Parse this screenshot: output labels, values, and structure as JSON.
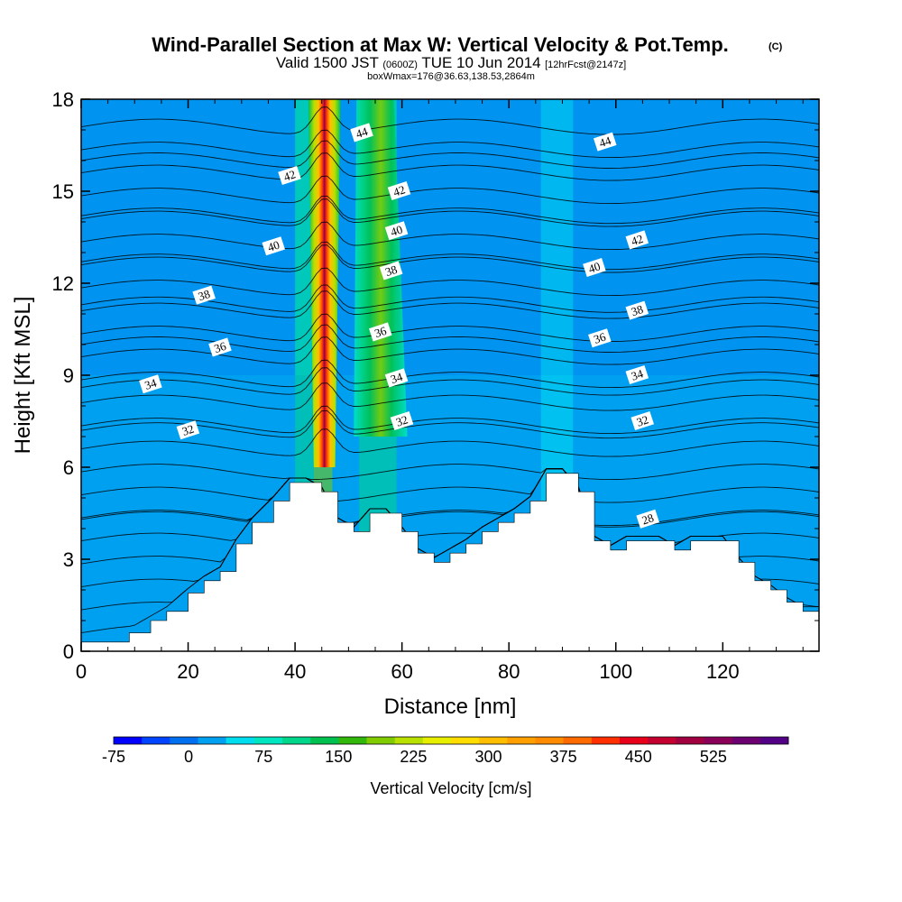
{
  "chart_data": {
    "type": "heatmap",
    "title": "Wind-Parallel Section at Max W: Vertical Velocity & Pot.Temp.",
    "title_mark": "(C)",
    "subtitle": {
      "valid_prefix": "Valid 1500 JST",
      "utc": "(0600Z)",
      "date": "TUE 10 Jun 2014",
      "forecast": "[12hrFcst@2147z]"
    },
    "annotation": "boxWmax=176@36.63,138.53,2864m",
    "xlabel": "Distance [nm]",
    "ylabel": "Height [Kft MSL]",
    "xlim": [
      0,
      138
    ],
    "ylim": [
      0,
      18
    ],
    "xticks": [
      0,
      20,
      40,
      60,
      80,
      100,
      120
    ],
    "xtick_labels": [
      "0",
      "20",
      "40",
      "60",
      "80",
      "100",
      "120"
    ],
    "yticks": [
      0,
      3,
      6,
      9,
      12,
      15,
      18
    ],
    "ytick_labels": [
      "0",
      "3",
      "6",
      "9",
      "12",
      "15",
      "18"
    ],
    "colorbar": {
      "label": "Vertical Velocity [cm/s]",
      "min": -75,
      "max": 600,
      "step": 25,
      "ticks": [
        -75,
        0,
        75,
        150,
        225,
        300,
        375,
        450,
        525
      ],
      "tick_labels": [
        "-75",
        "0",
        "75",
        "150",
        "225",
        "300",
        "375",
        "450",
        "525"
      ],
      "colors": [
        "#0000ff",
        "#0044ff",
        "#0070f0",
        "#00a0f0",
        "#00ddee",
        "#00e6c0",
        "#00d78a",
        "#00c050",
        "#32b80a",
        "#80cc00",
        "#b8e000",
        "#e8ee00",
        "#ffdd00",
        "#ffbf00",
        "#ffa000",
        "#ff8c00",
        "#ff6a00",
        "#ff3000",
        "#e8001a",
        "#c40030",
        "#a00040",
        "#8a0058",
        "#6c0070",
        "#520085"
      ]
    },
    "vertical_velocity_bands": [
      {
        "x": [
          0,
          9
        ],
        "base": 0
      },
      {
        "x": [
          9,
          40
        ],
        "base": 0
      },
      {
        "x": [
          40,
          43.5
        ],
        "base": 75
      },
      {
        "x": [
          43.5,
          47
        ],
        "base": 150
      },
      {
        "x": [
          47,
          52
        ],
        "base": 0
      },
      {
        "x": [
          52,
          59
        ],
        "base": 75
      },
      {
        "x": [
          59,
          86
        ],
        "base": 0
      },
      {
        "x": [
          86,
          92
        ],
        "base": 25
      },
      {
        "x": [
          92,
          138
        ],
        "base": 0
      }
    ],
    "updraft_core": {
      "x": 45.5,
      "height_range": [
        6,
        18
      ],
      "max": 500
    },
    "secondary_updraft": {
      "x": 55,
      "height_range": [
        7,
        18
      ],
      "max": 150
    },
    "terrain_kft": {
      "x": [
        0,
        9,
        13,
        16,
        20,
        23,
        26,
        29,
        32,
        36,
        39,
        42,
        45,
        48,
        51,
        54,
        57,
        60,
        63,
        66,
        69,
        72,
        75,
        78,
        81,
        84,
        87,
        90,
        93,
        96,
        99,
        102,
        105,
        108,
        111,
        114,
        117,
        120,
        123,
        126,
        129,
        132,
        135,
        138
      ],
      "height": [
        0.3,
        0.6,
        1.0,
        1.3,
        1.9,
        2.3,
        2.6,
        3.5,
        4.2,
        4.9,
        5.5,
        5.5,
        5.2,
        4.2,
        3.9,
        4.5,
        4.5,
        3.9,
        3.2,
        2.9,
        3.2,
        3.5,
        3.9,
        4.2,
        4.5,
        4.9,
        5.8,
        5.8,
        5.2,
        3.6,
        3.3,
        3.6,
        3.6,
        3.6,
        3.3,
        3.6,
        3.6,
        3.6,
        2.9,
        2.3,
        2.0,
        1.6,
        1.3,
        1.3
      ]
    },
    "potential_temperature_contours": [
      {
        "label": "28",
        "height": 4.3
      },
      {
        "label": "32",
        "height": 7.2
      },
      {
        "label": "34",
        "height": 8.6
      },
      {
        "label": "36",
        "height": 10.0
      },
      {
        "label": "38",
        "height": 11.3
      },
      {
        "label": "40",
        "height": 12.7
      },
      {
        "label": "42",
        "height": 14.2
      },
      {
        "label": "44",
        "height": 16.0
      }
    ],
    "contour_label_positions": [
      {
        "label": "44",
        "x": 52.5,
        "y": 16.9
      },
      {
        "label": "44",
        "x": 98,
        "y": 16.6
      },
      {
        "label": "42",
        "x": 39,
        "y": 15.5
      },
      {
        "label": "42",
        "x": 59.5,
        "y": 15.0
      },
      {
        "label": "42",
        "x": 104,
        "y": 13.4
      },
      {
        "label": "40",
        "x": 36,
        "y": 13.2
      },
      {
        "label": "40",
        "x": 59,
        "y": 13.7
      },
      {
        "label": "40",
        "x": 96,
        "y": 12.5
      },
      {
        "label": "38",
        "x": 23,
        "y": 11.6
      },
      {
        "label": "38",
        "x": 58,
        "y": 12.4
      },
      {
        "label": "38",
        "x": 104,
        "y": 11.1
      },
      {
        "label": "36",
        "x": 26,
        "y": 9.9
      },
      {
        "label": "36",
        "x": 56,
        "y": 10.4
      },
      {
        "label": "36",
        "x": 97,
        "y": 10.2
      },
      {
        "label": "34",
        "x": 13,
        "y": 8.7
      },
      {
        "label": "34",
        "x": 59,
        "y": 8.9
      },
      {
        "label": "34",
        "x": 104,
        "y": 9.0
      },
      {
        "label": "32",
        "x": 20,
        "y": 7.2
      },
      {
        "label": "32",
        "x": 60,
        "y": 7.5
      },
      {
        "label": "32",
        "x": 105,
        "y": 7.5
      },
      {
        "label": "28",
        "x": 106,
        "y": 4.3
      }
    ]
  }
}
